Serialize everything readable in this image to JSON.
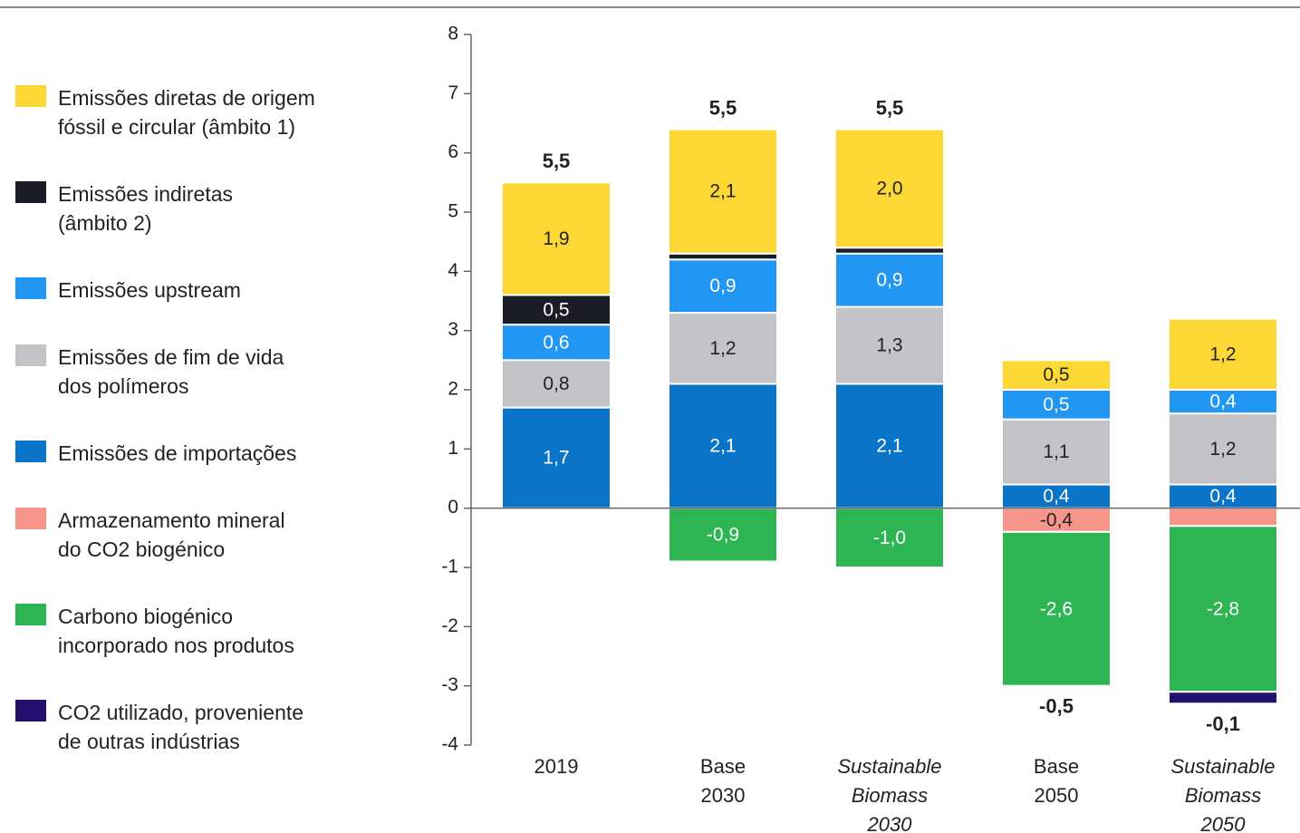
{
  "chart_data": {
    "type": "stacked-bar",
    "categories": [
      "2019",
      "Base\n2030",
      "Sustainable\nBiomass\n2030",
      "Base\n2050",
      "Sustainable\nBiomass\n2050"
    ],
    "category_italic": [
      false,
      false,
      true,
      false,
      true
    ],
    "series": [
      {
        "name": "Emissões diretas de origem\nfóssil e circular (âmbito 1)",
        "color": "#fdd835",
        "label_color": "#222222",
        "values": [
          1.9,
          2.1,
          2.0,
          0.5,
          1.2
        ],
        "value_labels": [
          "1,9",
          "2,1",
          "2,0",
          "0,5",
          "1,2"
        ]
      },
      {
        "name": "Emissões indiretas\n(âmbito 2)",
        "color": "#1c1c28",
        "label_color": "#ffffff",
        "values": [
          0.5,
          0.1,
          0.1,
          null,
          null
        ],
        "value_labels": [
          "0,5",
          null,
          null,
          null,
          null
        ]
      },
      {
        "name": "Emissões upstream",
        "color": "#2196f3",
        "label_color": "#ffffff",
        "values": [
          0.6,
          0.9,
          0.9,
          0.5,
          0.4
        ],
        "value_labels": [
          "0,6",
          "0,9",
          "0,9",
          "0,5",
          "0,4"
        ]
      },
      {
        "name": "Emissões de fim de vida\ndos polímeros",
        "color": "#c3c3c8",
        "label_color": "#222222",
        "values": [
          0.8,
          1.2,
          1.3,
          1.1,
          1.2
        ],
        "value_labels": [
          "0,8",
          "1,2",
          "1,3",
          "1,1",
          "1,2"
        ]
      },
      {
        "name": "Emissões de importações",
        "color": "#0a74c9",
        "label_color": "#ffffff",
        "values": [
          1.7,
          2.1,
          2.1,
          0.4,
          0.4
        ],
        "value_labels": [
          "1,7",
          "2,1",
          "2,1",
          "0,4",
          "0,4"
        ]
      },
      {
        "name": "Armazenamento mineral\ndo CO2 biogénico",
        "color": "#f7958b",
        "label_color": "#222222",
        "values": [
          null,
          null,
          null,
          -0.4,
          -0.3
        ],
        "value_labels": [
          null,
          null,
          null,
          "-0,4",
          null
        ]
      },
      {
        "name": "Carbono biogénico\nincorporado nos produtos",
        "color": "#2db553",
        "label_color": "#ffffff",
        "values": [
          null,
          -0.9,
          -1.0,
          -2.6,
          -2.8
        ],
        "value_labels": [
          null,
          "-0,9",
          "-1,0",
          "-2,6",
          "-2,8"
        ]
      },
      {
        "name": "CO2 utilizado, proveniente\nde outras indústrias",
        "color": "#23106e",
        "label_color": "#ffffff",
        "values": [
          null,
          null,
          null,
          null,
          -0.2
        ],
        "value_labels": [
          null,
          null,
          null,
          null,
          null
        ]
      }
    ],
    "totals": [
      5.5,
      5.5,
      5.5,
      -0.5,
      -0.1
    ],
    "total_labels": [
      "5,5",
      "5,5",
      "5,5",
      "-0,5",
      "-0,1"
    ],
    "ylim": [
      -4,
      8
    ],
    "yticks": [
      -4,
      -3,
      -2,
      -1,
      0,
      1,
      2,
      3,
      4,
      5,
      6,
      7,
      8
    ],
    "grid": false
  }
}
